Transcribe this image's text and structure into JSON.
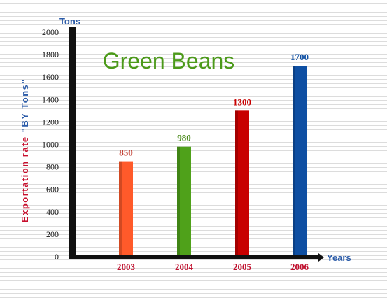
{
  "chart_data": {
    "type": "bar",
    "title": "Green Beans",
    "ylabel_prefix": "Exportation rate",
    "ylabel_suffix": "\"BY Tons\"",
    "yunit": "Tons",
    "xlabel": "Years",
    "categories": [
      "2003",
      "2004",
      "2005",
      "2006"
    ],
    "values": [
      850,
      980,
      1300,
      1700
    ],
    "data_labels": [
      "850",
      "980",
      "1300",
      "1700"
    ],
    "ylim": [
      0,
      2000
    ],
    "yticks": [
      0,
      200,
      400,
      600,
      800,
      1000,
      1200,
      1400,
      1600,
      1800,
      2000
    ],
    "bar_colors": [
      "#ff5a2a",
      "#4fa11a",
      "#c80000",
      "#0e4fa3"
    ],
    "label_colors": [
      "#c0392b",
      "#4a8a1a",
      "#c80000",
      "#0e4fa3"
    ],
    "grid": false,
    "legend": "none"
  },
  "colors": {
    "axis": "#111111",
    "title": "#4c9a1a",
    "axis_label": "#2b5ba8",
    "ylabel_red": "#c8102e",
    "category_label": "#c0102e"
  }
}
